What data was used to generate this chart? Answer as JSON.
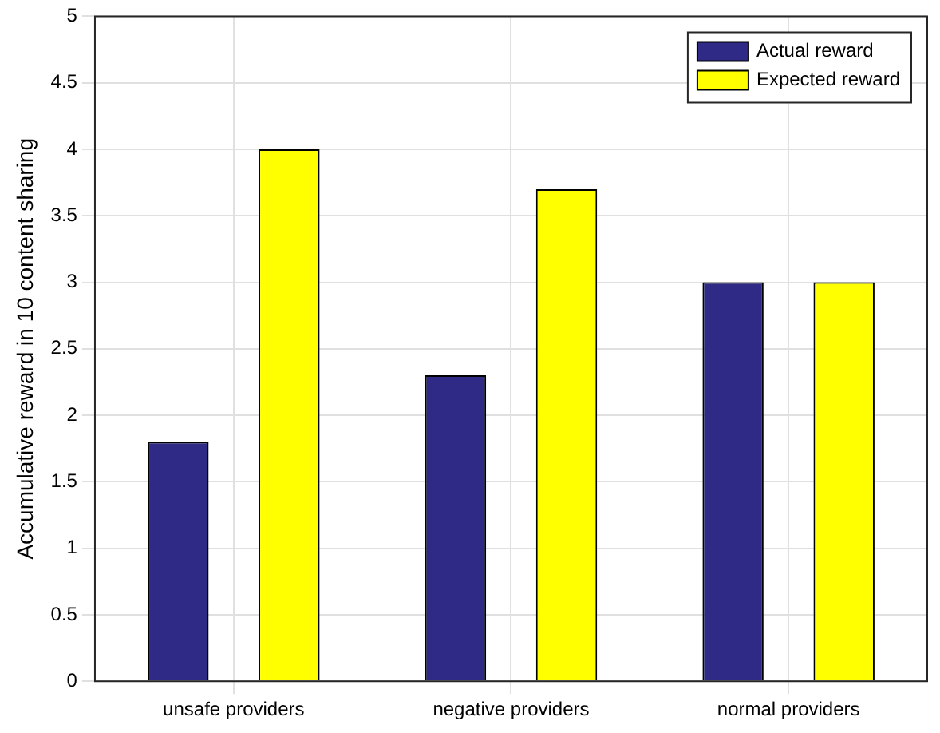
{
  "chart_data": {
    "type": "bar",
    "ylabel": "Accumulative reward in 10 content sharing",
    "categories": [
      "unsafe providers",
      "negative providers",
      "normal providers"
    ],
    "series": [
      {
        "name": "Actual reward",
        "color": "#2e2a86",
        "values": [
          1.8,
          2.3,
          3
        ]
      },
      {
        "name": "Expected reward",
        "color": "#ffff00",
        "values": [
          4,
          3.7,
          3
        ]
      }
    ],
    "ylim": [
      0,
      5
    ],
    "yticks": [
      0,
      0.5,
      1,
      1.5,
      2,
      2.5,
      3,
      3.5,
      4,
      4.5,
      5
    ],
    "grid": true,
    "legend": "top right"
  }
}
